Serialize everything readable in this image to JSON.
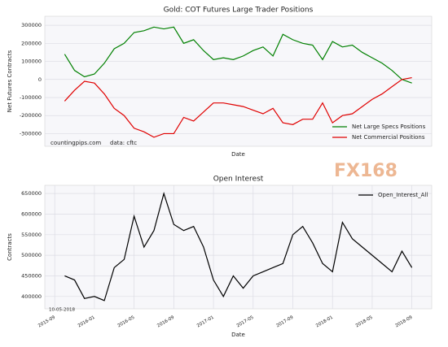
{
  "chart_data": [
    {
      "type": "line",
      "title": "Gold: COT Futures Large Trader Positions",
      "x_label": "Date",
      "y_label": "Net Futures Contracts",
      "annotations": [
        "countingpips.com",
        "data: cftc"
      ],
      "x": [
        "2015-10",
        "2015-11",
        "2015-12",
        "2016-01",
        "2016-02",
        "2016-03",
        "2016-04",
        "2016-05",
        "2016-06",
        "2016-07",
        "2016-08",
        "2016-09",
        "2016-10",
        "2016-11",
        "2016-12",
        "2017-01",
        "2017-02",
        "2017-03",
        "2017-04",
        "2017-05",
        "2017-06",
        "2017-07",
        "2017-08",
        "2017-09",
        "2017-10",
        "2017-11",
        "2017-12",
        "2018-01",
        "2018-02",
        "2018-03",
        "2018-04",
        "2018-05",
        "2018-06",
        "2018-07",
        "2018-08",
        "2018-09"
      ],
      "xlim": [
        "2015-08",
        "2018-11"
      ],
      "ylim": [
        -370000,
        350000
      ],
      "yticks": [
        -300000,
        -200000,
        -100000,
        0,
        100000,
        200000,
        300000
      ],
      "grid": true,
      "legend": "lower right",
      "series": [
        {
          "name": "Net Large Specs Positions",
          "color": "#008000",
          "values": [
            140000,
            50000,
            15000,
            30000,
            90000,
            170000,
            200000,
            260000,
            270000,
            290000,
            280000,
            290000,
            200000,
            220000,
            160000,
            110000,
            120000,
            110000,
            130000,
            160000,
            180000,
            130000,
            250000,
            220000,
            200000,
            190000,
            110000,
            210000,
            180000,
            190000,
            150000,
            120000,
            90000,
            50000,
            0,
            -20000
          ]
        },
        {
          "name": "Net Commercial Positions",
          "color": "#e00000",
          "values": [
            -120000,
            -60000,
            -10000,
            -20000,
            -80000,
            -160000,
            -200000,
            -270000,
            -290000,
            -320000,
            -300000,
            -300000,
            -210000,
            -230000,
            -180000,
            -130000,
            -130000,
            -140000,
            -150000,
            -170000,
            -190000,
            -160000,
            -240000,
            -250000,
            -220000,
            -220000,
            -130000,
            -240000,
            -200000,
            -190000,
            -150000,
            -110000,
            -80000,
            -40000,
            0,
            10000
          ]
        }
      ]
    },
    {
      "type": "line",
      "title": "Open Interest",
      "x_label": "Date",
      "y_label": "Contracts",
      "annotations": [
        "10-05-2018"
      ],
      "x": [
        "2015-10",
        "2015-11",
        "2015-12",
        "2016-01",
        "2016-02",
        "2016-03",
        "2016-04",
        "2016-05",
        "2016-06",
        "2016-07",
        "2016-08",
        "2016-09",
        "2016-10",
        "2016-11",
        "2016-12",
        "2017-01",
        "2017-02",
        "2017-03",
        "2017-04",
        "2017-05",
        "2017-06",
        "2017-07",
        "2017-08",
        "2017-09",
        "2017-10",
        "2017-11",
        "2017-12",
        "2018-01",
        "2018-02",
        "2018-03",
        "2018-04",
        "2018-05",
        "2018-06",
        "2018-07",
        "2018-08",
        "2018-09"
      ],
      "xlim": [
        "2015-08",
        "2018-11"
      ],
      "xticks": [
        "2015-09",
        "2016-01",
        "2016-05",
        "2016-09",
        "2017-01",
        "2017-05",
        "2017-09",
        "2018-01",
        "2018-05",
        "2018-09"
      ],
      "ylim": [
        370000,
        670000
      ],
      "yticks": [
        400000,
        450000,
        500000,
        550000,
        600000,
        650000
      ],
      "grid": true,
      "legend": "upper right",
      "series": [
        {
          "name": "Open_Interest_All",
          "color": "#000000",
          "values": [
            450000,
            440000,
            395000,
            400000,
            390000,
            470000,
            490000,
            595000,
            520000,
            560000,
            650000,
            575000,
            560000,
            570000,
            520000,
            440000,
            400000,
            450000,
            420000,
            450000,
            460000,
            470000,
            480000,
            550000,
            570000,
            530000,
            480000,
            460000,
            580000,
            540000,
            520000,
            500000,
            480000,
            460000,
            510000,
            470000
          ]
        }
      ]
    }
  ],
  "watermark": "FX168"
}
